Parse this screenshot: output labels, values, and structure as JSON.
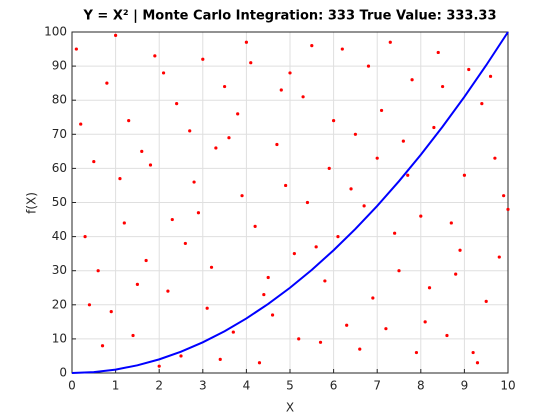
{
  "chart_data": {
    "type": "scatter",
    "title": "Y = X² | Monte Carlo Integration: 333 True Value: 333.33",
    "x_label": "X",
    "y_label": "f(X)",
    "xlim": [
      0,
      10
    ],
    "xticks": [
      0,
      1,
      2,
      3,
      4,
      5,
      6,
      7,
      8,
      9,
      10
    ],
    "ylim": [
      0,
      100
    ],
    "yticks": [
      0,
      10,
      20,
      30,
      40,
      50,
      60,
      70,
      80,
      90,
      100
    ],
    "grid": true,
    "series": [
      {
        "color": "#ff0000",
        "style": "points",
        "x": [
          0.1,
          0.5,
          0.9,
          1.3,
          1.7,
          2.1,
          2.5,
          2.9,
          3.3,
          3.7,
          4.1,
          4.5,
          4.9,
          5.3,
          5.7,
          6.1,
          6.5,
          6.9,
          7.3,
          7.7,
          8.1,
          8.5,
          8.9,
          9.3,
          9.7,
          0.3,
          0.7,
          1.1,
          1.5,
          1.9,
          2.3,
          2.7,
          3.1,
          3.5,
          3.9,
          4.3,
          4.7,
          5.1,
          5.5,
          5.9,
          6.3,
          6.7,
          7.1,
          7.5,
          7.9,
          8.3,
          8.7,
          9.1,
          9.5,
          9.9,
          0.2,
          0.6,
          1.0,
          1.4,
          1.8,
          2.2,
          2.6,
          3.0,
          3.4,
          3.8,
          4.2,
          4.6,
          5.0,
          5.4,
          5.8,
          6.2,
          6.6,
          7.0,
          7.4,
          7.8,
          8.2,
          8.6,
          9.0,
          9.4,
          9.8,
          0.4,
          0.8,
          1.2,
          1.6,
          2.0,
          2.4,
          2.8,
          3.2,
          3.6,
          4.0,
          4.4,
          4.8,
          5.2,
          5.6,
          6.0,
          6.4,
          6.8,
          7.2,
          7.6,
          8.0,
          8.4,
          8.8,
          9.2,
          9.6,
          10.0
        ],
        "values": [
          95,
          62,
          18,
          74,
          33,
          88,
          5,
          47,
          66,
          12,
          91,
          28,
          55,
          81,
          9,
          40,
          70,
          22,
          97,
          58,
          15,
          84,
          36,
          3,
          63,
          40,
          8,
          57,
          26,
          93,
          45,
          71,
          19,
          84,
          52,
          3,
          67,
          35,
          96,
          60,
          14,
          49,
          77,
          30,
          6,
          72,
          44,
          89,
          21,
          52,
          73,
          30,
          99,
          11,
          61,
          24,
          38,
          92,
          4,
          76,
          43,
          17,
          88,
          50,
          27,
          95,
          7,
          63,
          41,
          86,
          25,
          11,
          58,
          79,
          34,
          20,
          85,
          44,
          65,
          2,
          79,
          56,
          31,
          69,
          97,
          23,
          83,
          10,
          37,
          74,
          54,
          90,
          13,
          68,
          46,
          94,
          29,
          6,
          87,
          48
        ]
      },
      {
        "color": "#0000ff",
        "style": "line",
        "x": [
          0,
          0.5,
          1,
          1.5,
          2,
          2.5,
          3,
          3.5,
          4,
          4.5,
          5,
          5.5,
          6,
          6.5,
          7,
          7.5,
          8,
          8.5,
          9,
          9.5,
          10
        ],
        "values": [
          0,
          0.25,
          1,
          2.25,
          4,
          6.25,
          9,
          12.25,
          16,
          20.25,
          25,
          30.25,
          36,
          42.25,
          49,
          56.25,
          64,
          72.25,
          81,
          90.25,
          100
        ]
      }
    ]
  }
}
